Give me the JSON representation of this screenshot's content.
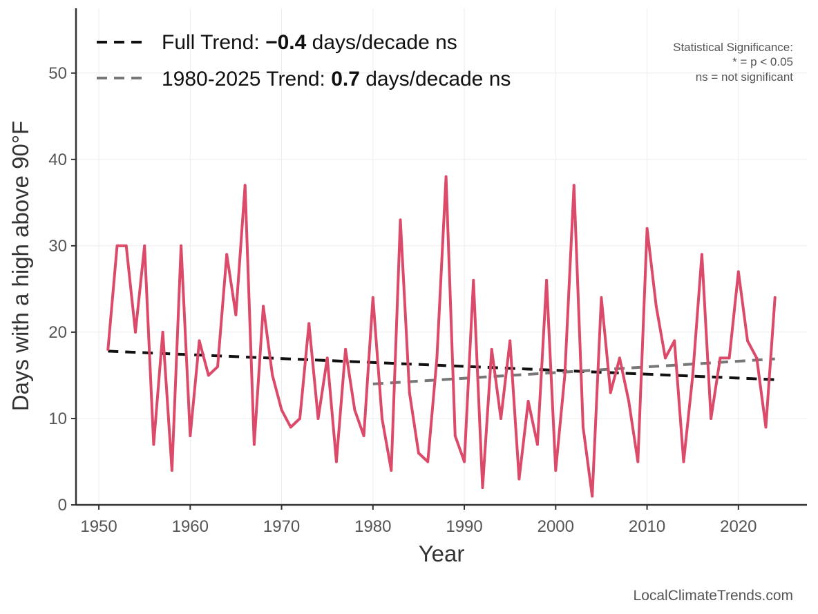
{
  "chart_data": {
    "type": "line",
    "title": "",
    "xlabel": "Year",
    "ylabel": "Days with a high above 90°F",
    "xlim": [
      1947.5,
      2027.5
    ],
    "ylim": [
      0,
      57.5
    ],
    "xticks": [
      1950,
      1960,
      1970,
      1980,
      1990,
      2000,
      2010,
      2020
    ],
    "yticks": [
      0,
      10,
      20,
      30,
      40,
      50
    ],
    "grid": true,
    "series": [
      {
        "name": "Days with a high above 90°F",
        "color": "#dc4a6a",
        "x": [
          1951,
          1952,
          1953,
          1954,
          1955,
          1956,
          1957,
          1958,
          1959,
          1960,
          1961,
          1962,
          1963,
          1964,
          1965,
          1966,
          1967,
          1968,
          1969,
          1970,
          1971,
          1972,
          1973,
          1974,
          1975,
          1976,
          1977,
          1978,
          1979,
          1980,
          1981,
          1982,
          1983,
          1984,
          1985,
          1986,
          1987,
          1988,
          1989,
          1990,
          1991,
          1992,
          1993,
          1994,
          1995,
          1996,
          1997,
          1998,
          1999,
          2000,
          2001,
          2002,
          2003,
          2004,
          2005,
          2006,
          2007,
          2008,
          2009,
          2010,
          2011,
          2012,
          2013,
          2014,
          2015,
          2016,
          2017,
          2018,
          2019,
          2020,
          2021,
          2022,
          2023,
          2024
        ],
        "values": [
          18,
          30,
          30,
          20,
          30,
          7,
          20,
          4,
          30,
          8,
          19,
          15,
          16,
          29,
          22,
          37,
          7,
          23,
          15,
          11,
          9,
          10,
          21,
          10,
          17,
          5,
          18,
          11,
          8,
          24,
          10,
          4,
          33,
          13,
          6,
          5,
          17,
          38,
          8,
          5,
          26,
          2,
          18,
          10,
          19,
          3,
          12,
          7,
          26,
          4,
          15,
          37,
          9,
          1,
          24,
          13,
          17,
          12,
          5,
          32,
          23,
          17,
          19,
          5,
          15,
          29,
          10,
          17,
          17,
          27,
          19,
          17,
          9,
          24
        ]
      }
    ],
    "trend_lines": [
      {
        "name": "Full Trend",
        "color": "#111111",
        "x": [
          1951,
          2024
        ],
        "y": [
          17.8,
          14.5
        ]
      },
      {
        "name": "1980-2025 Trend",
        "color": "#777777",
        "x": [
          1980,
          2024
        ],
        "y": [
          14.0,
          16.9
        ]
      }
    ],
    "legend": {
      "placement": "top-left",
      "entries": [
        {
          "prefix": "Full Trend: ",
          "value": "−0.4",
          "suffix": " days/decade ns",
          "color": "#111111"
        },
        {
          "prefix": "1980-2025 Trend: ",
          "value": "0.7",
          "suffix": " days/decade ns",
          "color": "#777777"
        }
      ]
    },
    "annotations": {
      "significance": [
        "Statistical Significance:",
        "* = p < 0.05",
        "ns = not significant"
      ],
      "credit": "LocalClimateTrends.com"
    }
  }
}
